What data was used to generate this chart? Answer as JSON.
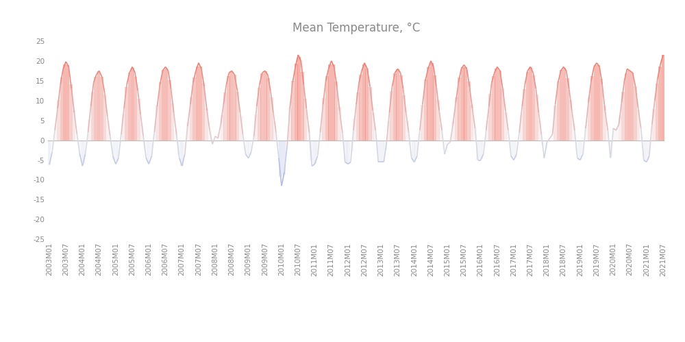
{
  "title": "Mean Temperature, °C",
  "title_fontsize": 12,
  "title_color": "#888888",
  "y_min": -25,
  "y_max": 25,
  "y_ticks": [
    25,
    20,
    15,
    10,
    5,
    0,
    -5,
    -10,
    -15,
    -20,
    -25
  ],
  "background_color": "#ffffff",
  "line_width": 1.2,
  "zero_line_color": "#bbbbbb",
  "tick_label_color": "#888888",
  "tick_label_fontsize": 7.5,
  "monthly_data": {
    "2003M01": -6.2,
    "2003M02": -3.0,
    "2003M03": 2.5,
    "2003M04": 8.0,
    "2003M05": 14.0,
    "2003M06": 18.0,
    "2003M07": 19.8,
    "2003M08": 18.5,
    "2003M09": 13.0,
    "2003M10": 7.0,
    "2003M11": 1.5,
    "2003M12": -3.5,
    "2004M01": -6.5,
    "2004M02": -3.5,
    "2004M03": 2.0,
    "2004M04": 8.5,
    "2004M05": 14.5,
    "2004M06": 16.5,
    "2004M07": 17.5,
    "2004M08": 16.0,
    "2004M09": 12.0,
    "2004M10": 6.0,
    "2004M11": 1.0,
    "2004M12": -4.0,
    "2005M01": -6.0,
    "2005M02": -4.5,
    "2005M03": 1.5,
    "2005M04": 8.0,
    "2005M05": 14.0,
    "2005M06": 17.0,
    "2005M07": 18.5,
    "2005M08": 17.0,
    "2005M09": 12.5,
    "2005M10": 6.5,
    "2005M11": 1.0,
    "2005M12": -4.5,
    "2006M01": -6.0,
    "2006M02": -4.0,
    "2006M03": 2.0,
    "2006M04": 8.5,
    "2006M05": 14.0,
    "2006M06": 17.5,
    "2006M07": 18.5,
    "2006M08": 17.5,
    "2006M09": 13.0,
    "2006M10": 7.0,
    "2006M11": 1.5,
    "2006M12": -4.5,
    "2007M01": -6.5,
    "2007M02": -3.5,
    "2007M03": 3.5,
    "2007M04": 9.0,
    "2007M05": 14.5,
    "2007M06": 17.5,
    "2007M07": 19.5,
    "2007M08": 18.0,
    "2007M09": 13.5,
    "2007M10": 7.5,
    "2007M11": 2.5,
    "2007M12": -1.0,
    "2008M01": 1.0,
    "2008M02": 0.5,
    "2008M03": 4.0,
    "2008M04": 9.0,
    "2008M05": 14.0,
    "2008M06": 17.0,
    "2008M07": 17.5,
    "2008M08": 16.5,
    "2008M09": 12.5,
    "2008M10": 7.0,
    "2008M11": 1.5,
    "2008M12": -3.5,
    "2009M01": -4.5,
    "2009M02": -3.0,
    "2009M03": 1.0,
    "2009M04": 8.5,
    "2009M05": 14.0,
    "2009M06": 17.0,
    "2009M07": 17.5,
    "2009M08": 16.5,
    "2009M09": 12.5,
    "2009M10": 7.0,
    "2009M11": 2.0,
    "2009M12": -4.5,
    "2010M01": -11.5,
    "2010M02": -8.0,
    "2010M03": -1.5,
    "2010M04": 8.0,
    "2010M05": 14.5,
    "2010M06": 18.5,
    "2010M07": 21.5,
    "2010M08": 20.0,
    "2010M09": 14.0,
    "2010M10": 8.0,
    "2010M11": 2.0,
    "2010M12": -6.5,
    "2011M01": -6.0,
    "2011M02": -4.0,
    "2011M03": 2.0,
    "2011M04": 9.0,
    "2011M05": 15.0,
    "2011M06": 18.0,
    "2011M07": 20.0,
    "2011M08": 18.5,
    "2011M09": 13.5,
    "2011M10": 7.5,
    "2011M11": 2.0,
    "2011M12": -5.5,
    "2012M01": -6.0,
    "2012M02": -5.5,
    "2012M03": 2.5,
    "2012M04": 9.0,
    "2012M05": 14.5,
    "2012M06": 17.5,
    "2012M07": 19.5,
    "2012M08": 18.0,
    "2012M09": 13.5,
    "2012M10": 7.5,
    "2012M11": 2.5,
    "2012M12": -5.5,
    "2013M01": -5.5,
    "2013M02": -5.5,
    "2013M03": -0.5,
    "2013M04": 7.0,
    "2013M05": 13.5,
    "2013M06": 17.0,
    "2013M07": 18.0,
    "2013M08": 17.0,
    "2013M09": 13.0,
    "2013M10": 7.0,
    "2013M11": 2.0,
    "2013M12": -4.5,
    "2014M01": -5.5,
    "2014M02": -4.0,
    "2014M03": 2.5,
    "2014M04": 9.0,
    "2014M05": 15.0,
    "2014M06": 18.0,
    "2014M07": 20.0,
    "2014M08": 18.5,
    "2014M09": 13.5,
    "2014M10": 7.5,
    "2014M11": 2.5,
    "2014M12": -3.5,
    "2015M01": -1.0,
    "2015M02": -0.5,
    "2015M03": 4.0,
    "2015M04": 9.5,
    "2015M05": 14.5,
    "2015M06": 18.0,
    "2015M07": 19.0,
    "2015M08": 18.0,
    "2015M09": 13.5,
    "2015M10": 8.0,
    "2015M11": 3.0,
    "2015M12": -5.0,
    "2016M01": -5.0,
    "2016M02": -3.5,
    "2016M03": 2.5,
    "2016M04": 8.5,
    "2016M05": 14.5,
    "2016M06": 17.0,
    "2016M07": 18.5,
    "2016M08": 17.5,
    "2016M09": 13.0,
    "2016M10": 7.5,
    "2016M11": 2.5,
    "2016M12": -4.0,
    "2017M01": -5.0,
    "2017M02": -3.5,
    "2017M03": 2.0,
    "2017M04": 8.5,
    "2017M05": 14.0,
    "2017M06": 17.5,
    "2017M07": 18.5,
    "2017M08": 17.0,
    "2017M09": 13.0,
    "2017M10": 7.0,
    "2017M11": 1.5,
    "2017M12": -4.5,
    "2018M01": -0.5,
    "2018M02": 0.5,
    "2018M03": 1.5,
    "2018M04": 9.0,
    "2018M05": 14.5,
    "2018M06": 17.5,
    "2018M07": 18.5,
    "2018M08": 17.5,
    "2018M09": 13.0,
    "2018M10": 7.5,
    "2018M11": 2.5,
    "2018M12": -4.5,
    "2019M01": -5.0,
    "2019M02": -3.5,
    "2019M03": 3.0,
    "2019M04": 9.5,
    "2019M05": 15.0,
    "2019M06": 18.5,
    "2019M07": 19.5,
    "2019M08": 18.5,
    "2019M09": 14.0,
    "2019M10": 7.5,
    "2019M11": 2.5,
    "2019M12": -4.5,
    "2020M01": 3.0,
    "2020M02": 2.5,
    "2020M03": 4.0,
    "2020M04": 9.5,
    "2020M05": 15.0,
    "2020M06": 18.0,
    "2020M07": 17.5,
    "2020M08": 17.0,
    "2020M09": 13.5,
    "2020M10": 8.0,
    "2020M11": 3.0,
    "2020M12": -5.0,
    "2021M01": -5.5,
    "2021M02": -4.0,
    "2021M03": 4.0,
    "2021M04": 10.0,
    "2021M05": 15.5,
    "2021M06": 19.0,
    "2021M07": 21.5
  },
  "x_tick_labels": [
    "2003M01",
    "2003M07",
    "2004M01",
    "2004M07",
    "2005M01",
    "2005M07",
    "2006M01",
    "2006M07",
    "2007M01",
    "2007M07",
    "2008M01",
    "2008M07",
    "2009M01",
    "2009M07",
    "2010M01",
    "2010M07",
    "2011M01",
    "2011M07",
    "2012M01",
    "2012M07",
    "2013M01",
    "2013M07",
    "2014M01",
    "2014M07",
    "2015M01",
    "2015M07",
    "2016M01",
    "2016M07",
    "2017M01",
    "2017M07",
    "2018M01",
    "2018M07",
    "2019M01",
    "2019M07",
    "2020M01",
    "2020M07",
    "2021M01",
    "2021M07"
  ]
}
